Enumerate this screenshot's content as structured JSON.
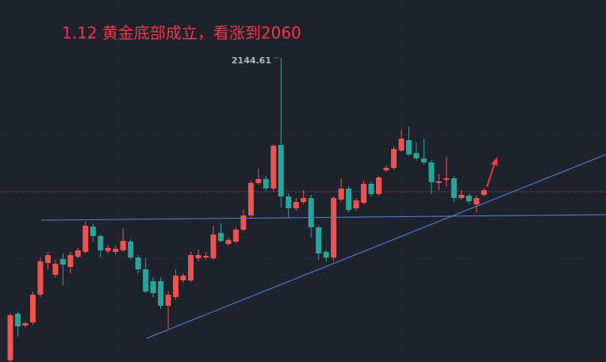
{
  "chart_data": {
    "type": "candlestick",
    "title": "1.12  黄金底部成立，看涨到2060",
    "up_color": "#ef5350",
    "down_color": "#26a69a",
    "ylim": [
      1952.5,
      2181
    ],
    "categories": [
      null,
      null,
      null,
      null,
      null,
      null,
      null,
      null,
      null,
      null,
      null,
      null,
      null,
      null,
      null,
      null,
      null,
      null,
      null,
      null,
      null,
      null,
      null,
      null,
      null,
      null,
      null,
      null,
      null,
      null,
      null,
      null,
      null,
      null,
      null,
      null,
      null,
      null,
      null,
      null,
      null,
      null,
      null,
      null,
      null,
      null,
      null,
      null,
      null,
      null,
      null,
      null,
      null,
      null,
      null,
      null,
      null,
      null,
      null,
      null,
      null,
      null,
      null,
      null
    ],
    "open": [
      1953.5,
      1983,
      1975.5,
      1977.5,
      1995,
      2015,
      2007.5,
      2017.5,
      2012.5,
      2019,
      2022,
      2038,
      2032,
      2022.5,
      2022,
      2023,
      2028.5,
      2018.5,
      2011,
      2003.5,
      2003.5,
      1988,
      1993.5,
      2004,
      2004,
      2018,
      2018.5,
      2018,
      2034,
      2027,
      2028.5,
      2036,
      2045,
      2065.5,
      2068,
      2062,
      2089.5,
      2057,
      2049.5,
      2053.5,
      2056,
      2037.5,
      2022,
      2018.5,
      2055,
      2062,
      2049.5,
      2053,
      2065,
      2058.5,
      2073.5,
      2075,
      2086,
      2092.5,
      2084.5,
      2081,
      2078.5,
      2065.5,
      2067.5,
      2068.5,
      2056,
      2057.5,
      2052,
      2058
    ],
    "high": [
      1983.5,
      1984.5,
      1978,
      1997,
      2018.5,
      2022,
      2017,
      2021,
      2022,
      2024.5,
      2041,
      2040,
      2033,
      2026.5,
      2026,
      2037,
      2030,
      2020,
      2018.5,
      2006,
      2006,
      1997,
      2011,
      2008.5,
      2022,
      2023.5,
      2022,
      2038.5,
      2040,
      2031,
      2037.5,
      2048.5,
      2067,
      2074.5,
      2070,
      2090,
      2144.61,
      2059,
      2056,
      2061,
      2058,
      2039,
      2023.5,
      2057,
      2068.5,
      2063.5,
      2056,
      2067,
      2066.5,
      2070,
      2076.5,
      2088.5,
      2099.5,
      2101,
      2091,
      2093.5,
      2080,
      2071,
      2082,
      2070,
      2061,
      2059,
      2057.5,
      2062.5
    ],
    "low": [
      1952.5,
      1968.5,
      1974.5,
      1976,
      1993.5,
      2011,
      2006,
      2001,
      2008.5,
      2018,
      2021,
      2028.5,
      2018.5,
      2021,
      2020,
      2022,
      2017,
      2008.5,
      1996,
      1993.5,
      1986,
      1973.5,
      1992,
      2002.5,
      2003,
      2016,
      2017,
      2017,
      2028,
      2026,
      2027.5,
      2035,
      2044,
      2064.5,
      2060,
      2060,
      2050,
      2043.5,
      2048,
      2052,
      2031,
      2017,
      2016,
      2016,
      2054,
      2047,
      2048,
      2052,
      2057,
      2057.5,
      2072.5,
      2074,
      2085,
      2082.5,
      2079.5,
      2077,
      2058.5,
      2061,
      2063.5,
      2053.5,
      2054.5,
      2052,
      2047,
      2057
    ],
    "close": [
      1982,
      1975,
      1977,
      1995,
      2016,
      2020,
      2014.5,
      2014,
      2020,
      2023,
      2038.5,
      2032,
      2023,
      2024.5,
      2024,
      2029,
      2018.5,
      2011,
      1997,
      1996,
      1988,
      1995,
      2007,
      2007,
      2020,
      2020,
      2019.5,
      2033,
      2029,
      2029.5,
      2036,
      2045,
      2065.5,
      2068,
      2062,
      2089,
      2057,
      2049.5,
      2053.5,
      2056,
      2037.5,
      2021,
      2018.5,
      2056,
      2062,
      2048.5,
      2054.5,
      2065,
      2058.5,
      2069,
      2075,
      2087,
      2093.5,
      2083.5,
      2081,
      2078.5,
      2066,
      2066.5,
      2068.5,
      2056,
      2058,
      2054,
      2056,
      2061
    ]
  }
}
